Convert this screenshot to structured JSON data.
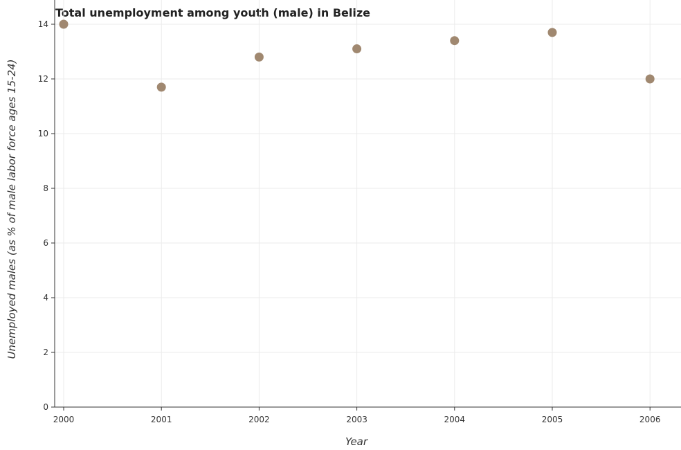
{
  "chart_data": {
    "type": "scatter",
    "title": "Total unemployment among youth (male) in Belize",
    "xlabel": "Year",
    "ylabel": "Unemployed males (as % of male labor force ages 15-24)",
    "categories": [
      "2000",
      "2001",
      "2002",
      "2003",
      "2004",
      "2005",
      "2006"
    ],
    "values": [
      14.0,
      11.7,
      12.8,
      13.1,
      13.4,
      13.7,
      12.0
    ],
    "yticks": [
      0,
      2,
      4,
      6,
      8,
      10,
      12,
      14
    ],
    "ylim": [
      0,
      14
    ],
    "grid": true,
    "point_color": "#a08870"
  }
}
